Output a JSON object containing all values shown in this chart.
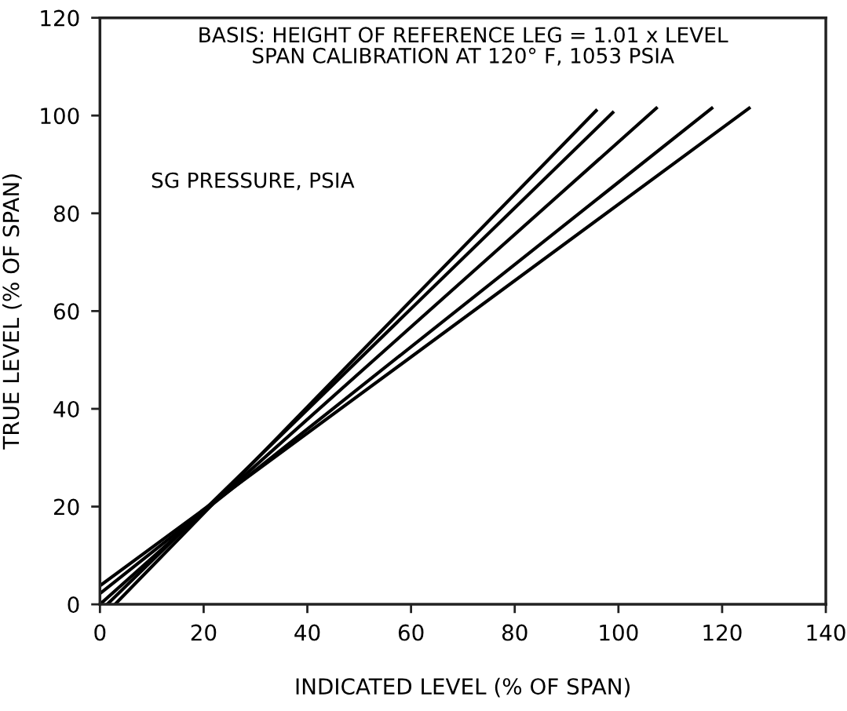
{
  "chart_data": {
    "type": "line",
    "xlabel": "INDICATED LEVEL (% OF SPAN)",
    "ylabel": "TRUE LEVEL (% OF SPAN)",
    "annotations": [
      "BASIS: HEIGHT OF REFERENCE LEG = 1.01 x LEVEL\nSPAN CALIBRATION AT 120° F, 1053 PSIA",
      "SG PRESSURE, PSIA"
    ],
    "series": [
      {
        "color": "#000000",
        "x": [
          2.9,
          95.7
        ],
        "values": [
          0,
          101
        ]
      },
      {
        "color": "#000000",
        "x": [
          1.4,
          98.9
        ],
        "values": [
          0,
          100.6
        ]
      },
      {
        "color": "#000000",
        "x": [
          0,
          107.3
        ],
        "values": [
          0,
          101.5
        ]
      },
      {
        "color": "#000000",
        "x": [
          0,
          118
        ],
        "values": [
          2.2,
          101.5
        ]
      },
      {
        "color": "#000000",
        "x": [
          0,
          125.2
        ],
        "values": [
          3.8,
          101.5
        ]
      }
    ],
    "xlim": [
      0,
      140
    ],
    "ylim": [
      0,
      120
    ],
    "xticks": [
      0,
      20,
      40,
      60,
      80,
      100,
      120,
      140
    ],
    "yticks": [
      0,
      20,
      40,
      60,
      80,
      100,
      120
    ],
    "grid": false,
    "legend": false,
    "marker": "none",
    "line_style": "solid"
  }
}
